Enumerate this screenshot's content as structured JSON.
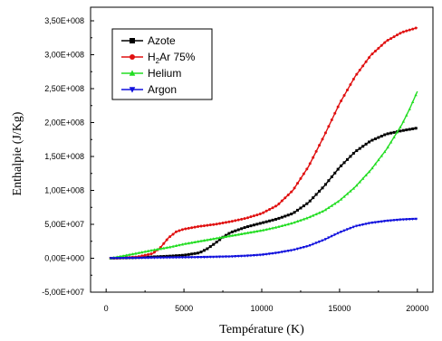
{
  "chart_data": {
    "type": "line",
    "xlabel": "Température (K)",
    "ylabel": "Enthalpie (J/Kg)",
    "xlim": [
      -1000,
      21000
    ],
    "ylim": [
      -50000000,
      370000000
    ],
    "x_ticks": [
      0,
      5000,
      10000,
      15000,
      20000
    ],
    "x_tick_labels": [
      "0",
      "5000",
      "10000",
      "15000",
      "20000"
    ],
    "y_ticks": [
      -50000000,
      0,
      50000000,
      100000000,
      150000000,
      200000000,
      250000000,
      300000000,
      350000000
    ],
    "y_tick_labels": [
      "-5,00E+007",
      "0,00E+000",
      "5,00E+007",
      "1,00E+008",
      "1,50E+008",
      "2,00E+008",
      "2,50E+008",
      "3,00E+008",
      "3,50E+008"
    ],
    "grid": false,
    "legend_position": "top-left",
    "series": [
      {
        "name": "Azote",
        "color": "#000000",
        "marker": "square",
        "x": [
          300,
          1000,
          2000,
          3000,
          4000,
          5000,
          6000,
          6500,
          7000,
          7500,
          8000,
          9000,
          10000,
          11000,
          12000,
          13000,
          14000,
          15000,
          16000,
          17000,
          18000,
          19000,
          20000
        ],
        "y": [
          0,
          500000,
          1000000,
          2000000,
          3000000,
          4500000,
          8000000,
          14000000,
          22000000,
          31000000,
          38000000,
          46000000,
          52000000,
          58000000,
          66000000,
          82000000,
          106000000,
          134000000,
          157000000,
          173000000,
          183000000,
          188000000,
          192000000
        ]
      },
      {
        "name": "H2Ar 75%",
        "legend_main": "H",
        "legend_sub": "2",
        "legend_rest": "Ar 75%",
        "color": "#e01010",
        "marker": "circle",
        "x": [
          300,
          1000,
          2000,
          3000,
          3500,
          4000,
          4500,
          5000,
          6000,
          7000,
          8000,
          9000,
          10000,
          11000,
          12000,
          13000,
          14000,
          15000,
          16000,
          17000,
          18000,
          19000,
          20000
        ],
        "y": [
          0,
          500000,
          2000000,
          7000000,
          16000000,
          30000000,
          39000000,
          43000000,
          47000000,
          50000000,
          54000000,
          59000000,
          66000000,
          78000000,
          100000000,
          135000000,
          180000000,
          228000000,
          268000000,
          299000000,
          320000000,
          333000000,
          340000000
        ]
      },
      {
        "name": "Helium",
        "color": "#22dd22",
        "marker": "triangle-up",
        "x": [
          300,
          1000,
          2000,
          3000,
          4000,
          5000,
          6000,
          7000,
          8000,
          9000,
          10000,
          11000,
          12000,
          13000,
          14000,
          15000,
          16000,
          17000,
          18000,
          19000,
          19500,
          20000
        ],
        "y": [
          0,
          3000000,
          7500000,
          12000000,
          16000000,
          21000000,
          25000000,
          29000000,
          33000000,
          37000000,
          41000000,
          46000000,
          52000000,
          60000000,
          70000000,
          85000000,
          105000000,
          130000000,
          160000000,
          197000000,
          220000000,
          246000000
        ]
      },
      {
        "name": "Argon",
        "color": "#1010dd",
        "marker": "triangle-down",
        "x": [
          300,
          2000,
          4000,
          6000,
          8000,
          9000,
          10000,
          11000,
          12000,
          13000,
          14000,
          15000,
          16000,
          17000,
          18000,
          19000,
          20000
        ],
        "y": [
          0,
          500000,
          1000000,
          1500000,
          2500000,
          3500000,
          5000000,
          8000000,
          12000000,
          18000000,
          27000000,
          38000000,
          47000000,
          52000000,
          55000000,
          57000000,
          58000000
        ]
      }
    ]
  }
}
